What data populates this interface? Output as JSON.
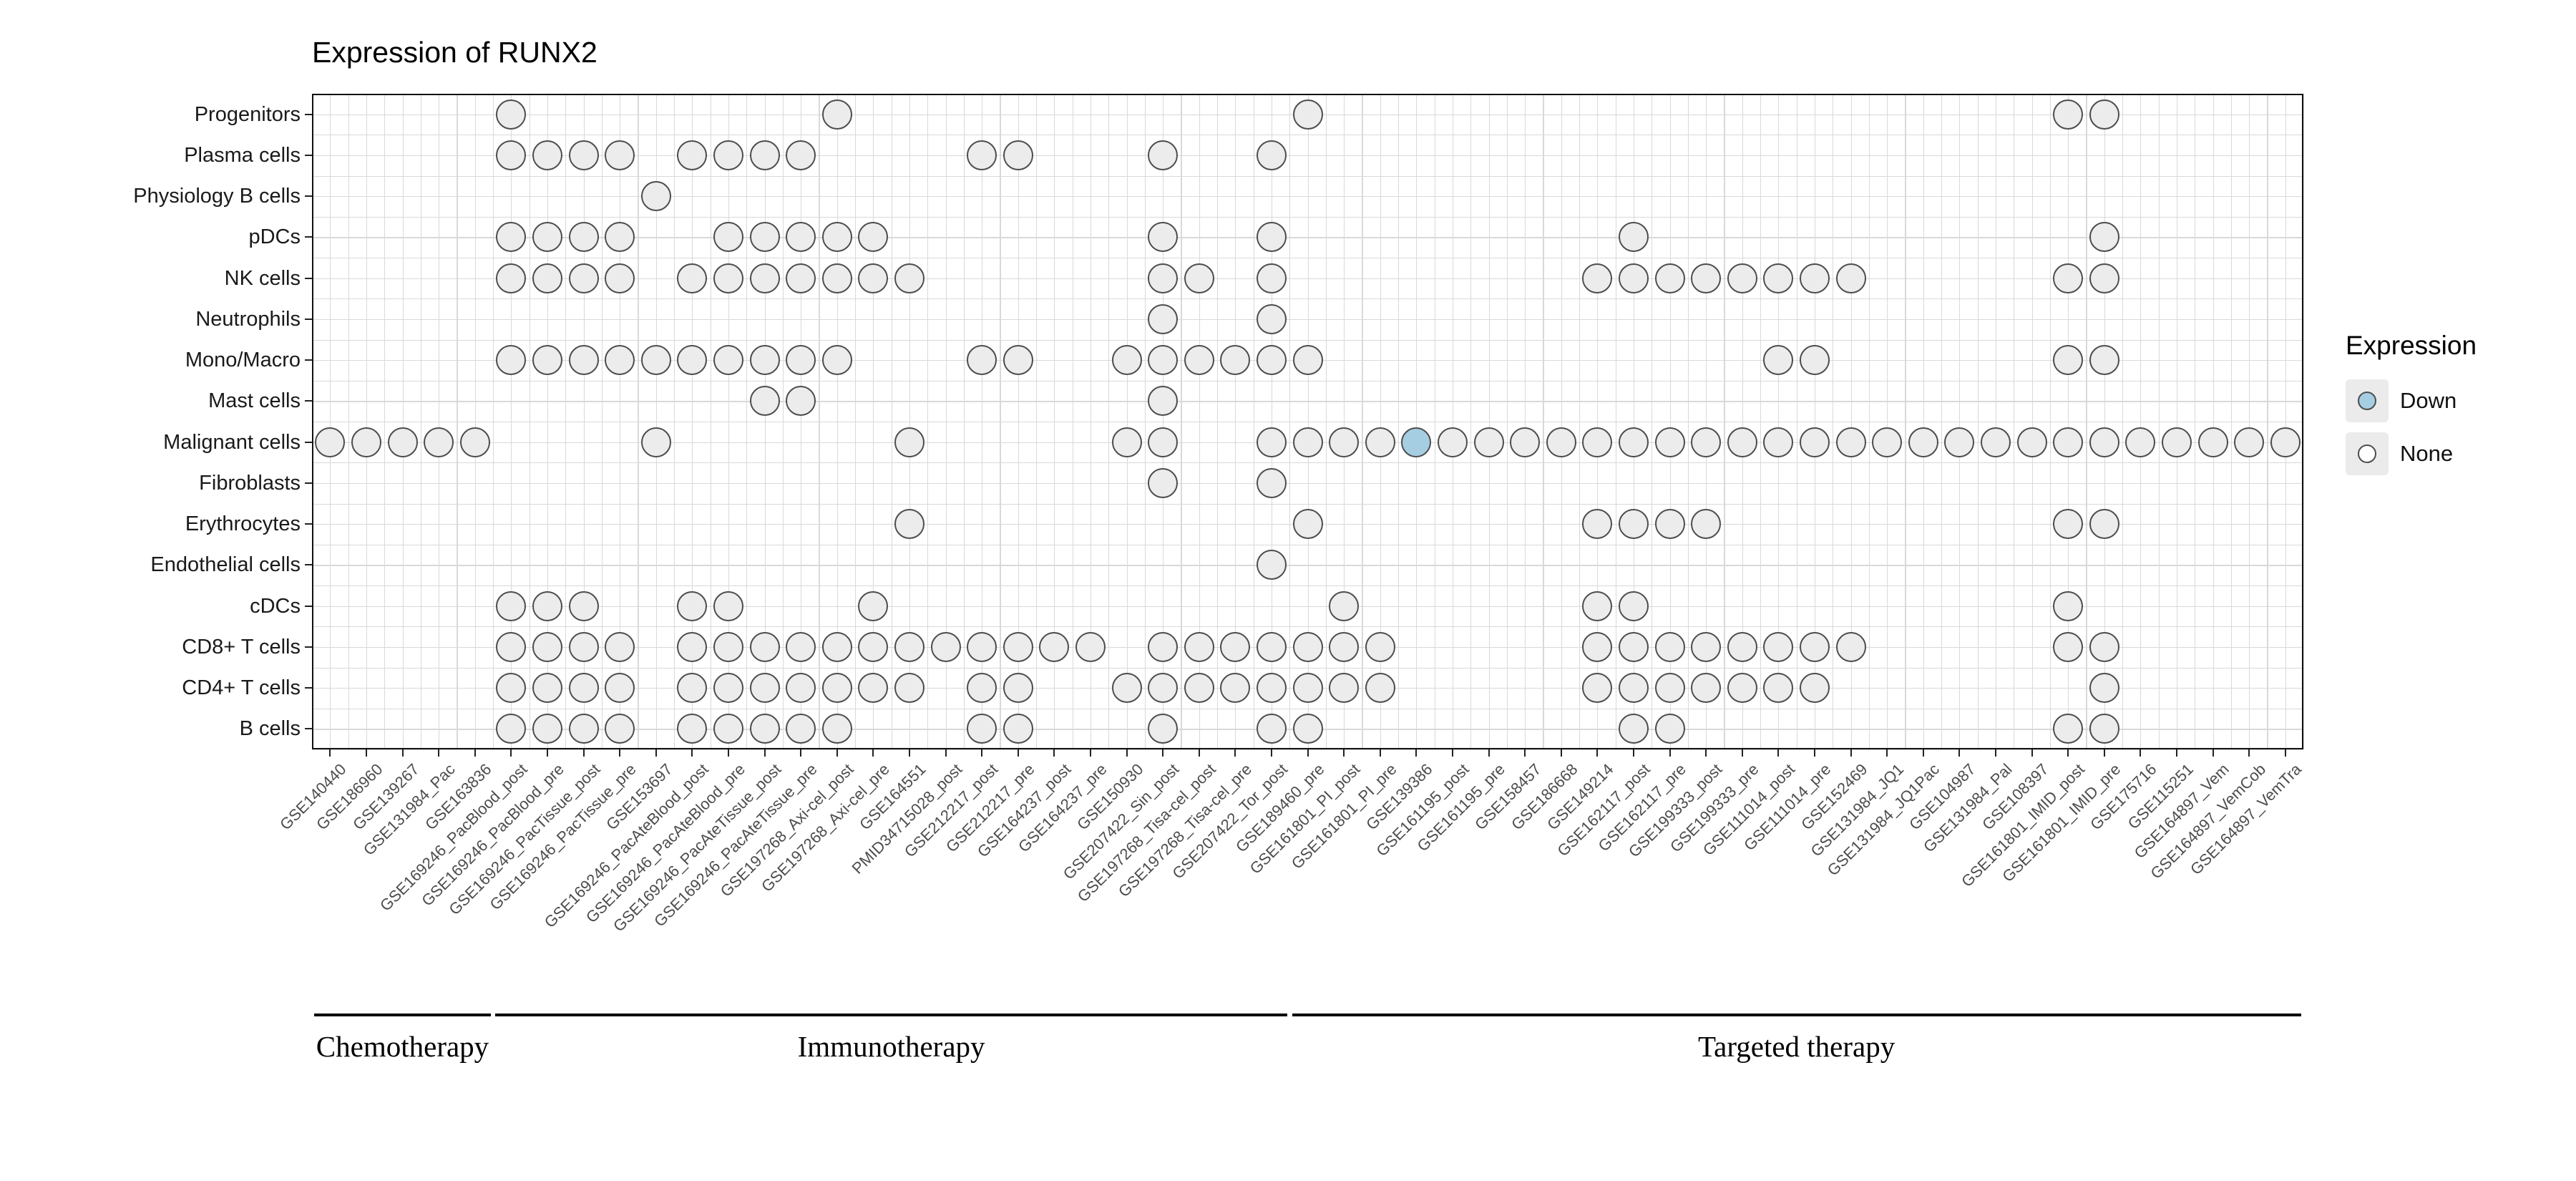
{
  "chart_data": {
    "type": "scatter",
    "title": "Expression of RUNX2",
    "legend": {
      "title": "Expression",
      "items": [
        {
          "label": "Down",
          "value": "down",
          "color": "#a6cee3"
        },
        {
          "label": "None",
          "value": "none",
          "color": "#ffffff"
        }
      ]
    },
    "y_categories": [
      "Progenitors",
      "Plasma cells",
      "Physiology B cells",
      "pDCs",
      "NK cells",
      "Neutrophils",
      "Mono/Macro",
      "Mast cells",
      "Malignant cells",
      "Fibroblasts",
      "Erythrocytes",
      "Endothelial cells",
      "cDCs",
      "CD8+ T cells",
      "CD4+ T cells",
      "B cells"
    ],
    "x_categories": [
      "GSE140440",
      "GSE186960",
      "GSE139267",
      "GSE131984_Pac",
      "GSE163836",
      "GSE169246_PacBlood_post",
      "GSE169246_PacBlood_pre",
      "GSE169246_PacTissue_post",
      "GSE169246_PacTissue_pre",
      "GSE153697",
      "GSE169246_PacAteBlood_post",
      "GSE169246_PacAteBlood_pre",
      "GSE169246_PacAteTissue_post",
      "GSE169246_PacAteTissue_pre",
      "GSE197268_Axi-cel_post",
      "GSE197268_Axi-cel_pre",
      "GSE164551",
      "PMID34715028_post",
      "GSE212217_post",
      "GSE212217_pre",
      "GSE164237_post",
      "GSE164237_pre",
      "GSE150930",
      "GSE207422_Sin_post",
      "GSE197268_Tisa-cel_post",
      "GSE197268_Tisa-cel_pre",
      "GSE207422_Tor_post",
      "GSE189460_pre",
      "GSE161801_PI_post",
      "GSE161801_PI_pre",
      "GSE139386",
      "GSE161195_post",
      "GSE161195_pre",
      "GSE158457",
      "GSE186668",
      "GSE149214",
      "GSE162117_post",
      "GSE162117_pre",
      "GSE199333_post",
      "GSE199333_pre",
      "GSE111014_post",
      "GSE111014_pre",
      "GSE152469",
      "GSE131984_JQ1",
      "GSE131984_JQ1Pac",
      "GSE104987",
      "GSE131984_Pal",
      "GSE108397",
      "GSE161801_IMID_post",
      "GSE161801_IMID_pre",
      "GSE175716",
      "GSE115251",
      "GSE164897_Vem",
      "GSE164897_VemCob",
      "GSE164897_VemTra"
    ],
    "x_groups": [
      {
        "label": "Chemotherapy",
        "start": 0,
        "end": 4
      },
      {
        "label": "Immunotherapy",
        "start": 5,
        "end": 26
      },
      {
        "label": "Targeted therapy",
        "start": 27,
        "end": 54
      }
    ],
    "dots_none": [
      [
        5,
        14,
        27,
        48,
        49
      ],
      [
        5,
        6,
        7,
        8,
        10,
        11,
        12,
        13,
        18,
        19,
        23,
        26
      ],
      [
        9
      ],
      [
        5,
        6,
        7,
        8,
        11,
        12,
        13,
        14,
        15,
        23,
        26,
        36,
        49
      ],
      [
        5,
        6,
        7,
        8,
        10,
        11,
        12,
        13,
        14,
        15,
        16,
        23,
        24,
        26,
        35,
        36,
        37,
        38,
        39,
        40,
        41,
        42,
        48,
        49
      ],
      [
        23,
        26
      ],
      [
        5,
        6,
        7,
        8,
        9,
        10,
        11,
        12,
        13,
        14,
        18,
        19,
        22,
        23,
        24,
        25,
        26,
        27,
        40,
        41,
        48,
        49
      ],
      [
        12,
        13,
        23
      ],
      [
        0,
        1,
        2,
        3,
        4,
        9,
        16,
        22,
        23,
        26,
        27,
        28,
        29,
        31,
        32,
        33,
        34,
        35,
        36,
        37,
        38,
        39,
        40,
        41,
        42,
        43,
        44,
        45,
        46,
        47,
        48,
        49,
        50,
        51,
        52,
        53,
        54
      ],
      [
        23,
        26
      ],
      [
        16,
        27,
        35,
        36,
        37,
        38,
        48,
        49
      ],
      [
        26
      ],
      [
        5,
        6,
        7,
        10,
        11,
        15,
        28,
        35,
        36,
        48
      ],
      [
        5,
        6,
        7,
        8,
        10,
        11,
        12,
        13,
        14,
        15,
        16,
        17,
        18,
        19,
        20,
        21,
        23,
        24,
        25,
        26,
        27,
        28,
        29,
        35,
        36,
        37,
        38,
        39,
        40,
        41,
        42,
        48,
        49
      ],
      [
        5,
        6,
        7,
        8,
        10,
        11,
        12,
        13,
        14,
        15,
        16,
        18,
        19,
        22,
        23,
        24,
        25,
        26,
        27,
        28,
        29,
        35,
        36,
        37,
        38,
        39,
        40,
        41,
        49
      ],
      [
        5,
        6,
        7,
        8,
        10,
        11,
        12,
        13,
        14,
        18,
        19,
        23,
        26,
        27,
        36,
        37,
        48,
        49
      ]
    ],
    "dots_down": [
      {
        "row": 8,
        "col": 30
      }
    ]
  }
}
